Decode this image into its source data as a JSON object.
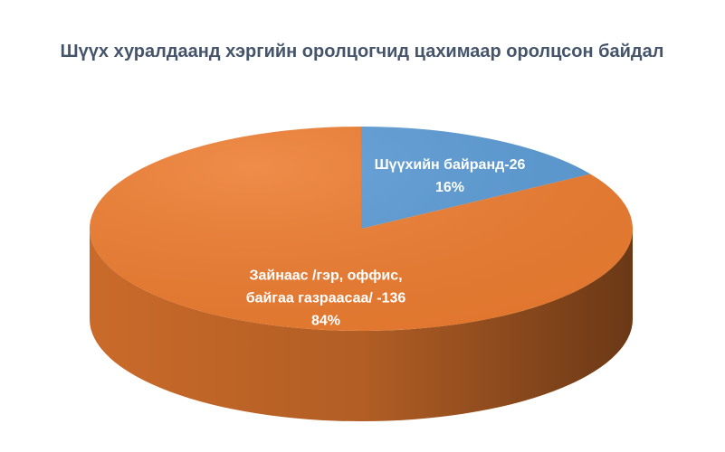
{
  "chart_data": {
    "type": "pie",
    "title": "Шүүх хуралдаанд хэргийн оролцогчид цахимаар оролцсон байдал",
    "categories": [
      "Шүүхийн байранд-26",
      "Зайнаас /гэр, оффис, байгаа газраасаа/ -136"
    ],
    "values": [
      16,
      84
    ],
    "value_labels": [
      "16%",
      "84%"
    ],
    "colors": [
      "#5b9bd5",
      "#ed7d31"
    ]
  }
}
